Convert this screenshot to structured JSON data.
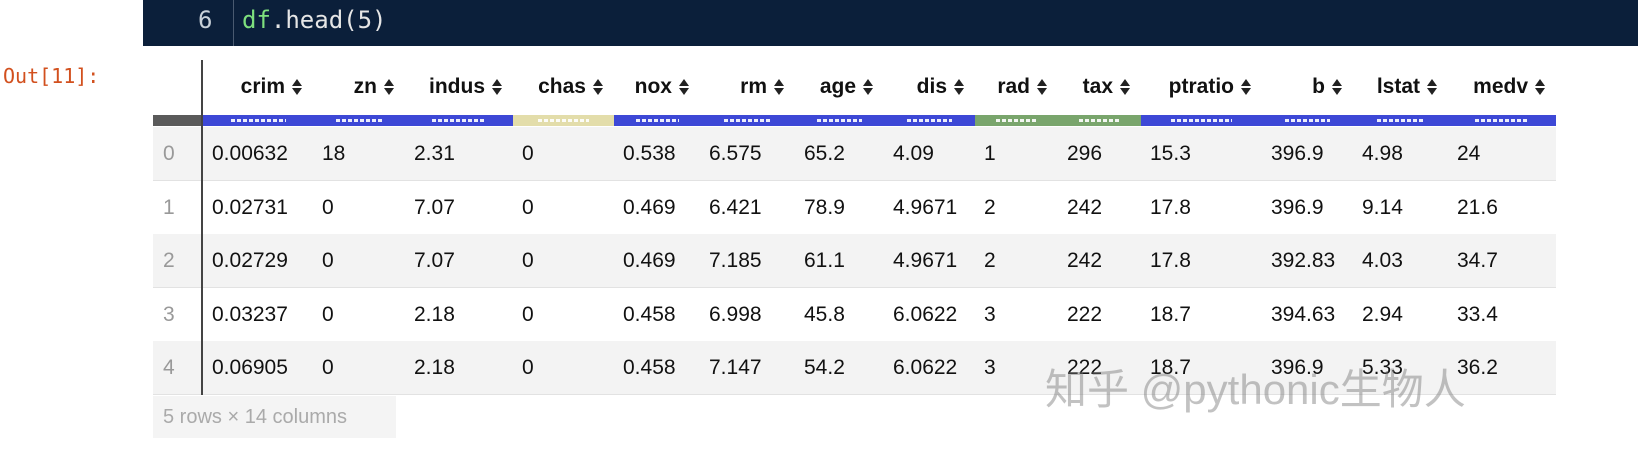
{
  "code": {
    "line_number": "6",
    "tokens": [
      "df",
      ".head(5)"
    ]
  },
  "prompt": "Out[11]:",
  "table": {
    "columns": [
      "crim",
      "zn",
      "indus",
      "chas",
      "nox",
      "rm",
      "age",
      "dis",
      "rad",
      "tax",
      "ptratio",
      "b",
      "lstat",
      "medv"
    ],
    "rows": [
      [
        "0",
        "0.00632",
        "18",
        "2.31",
        "0",
        "0.538",
        "6.575",
        "65.2",
        "4.09",
        "1",
        "296",
        "15.3",
        "396.9",
        "4.98",
        "24"
      ],
      [
        "1",
        "0.02731",
        "0",
        "7.07",
        "0",
        "0.469",
        "6.421",
        "78.9",
        "4.9671",
        "2",
        "242",
        "17.8",
        "396.9",
        "9.14",
        "21.6"
      ],
      [
        "2",
        "0.02729",
        "0",
        "7.07",
        "0",
        "0.469",
        "7.185",
        "61.1",
        "4.9671",
        "2",
        "242",
        "17.8",
        "392.83",
        "4.03",
        "34.7"
      ],
      [
        "3",
        "0.03237",
        "0",
        "2.18",
        "0",
        "0.458",
        "6.998",
        "45.8",
        "6.0622",
        "3",
        "222",
        "18.7",
        "394.63",
        "2.94",
        "33.4"
      ],
      [
        "4",
        "0.06905",
        "0",
        "2.18",
        "0",
        "0.458",
        "7.147",
        "54.2",
        "6.0622",
        "3",
        "222",
        "18.7",
        "396.9",
        "5.33",
        "36.2"
      ]
    ],
    "footer": "5 rows × 14 columns"
  },
  "watermark": "知乎 @pythonic生物人"
}
